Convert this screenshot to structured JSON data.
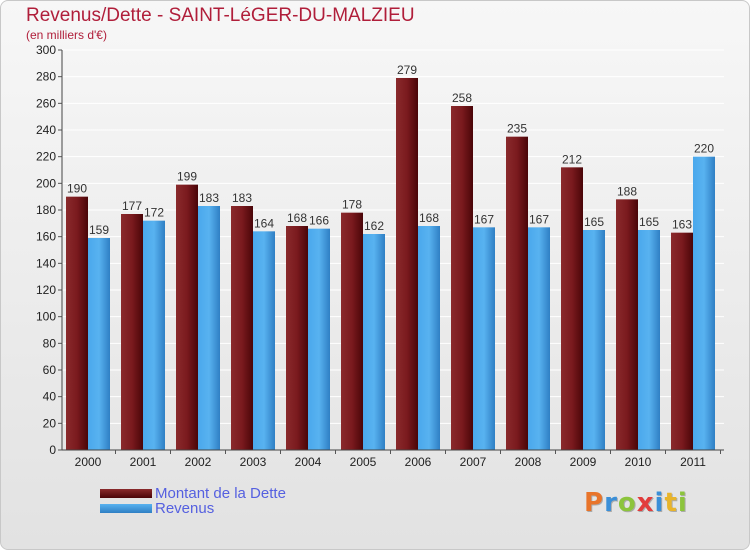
{
  "header": {
    "title": "Revenus/Dette - SAINT-LéGER-DU-MALZIEU",
    "subtitle": "(en milliers d'€)"
  },
  "chart_data": {
    "type": "bar",
    "categories": [
      "2000",
      "2001",
      "2002",
      "2003",
      "2004",
      "2005",
      "2006",
      "2007",
      "2008",
      "2009",
      "2010",
      "2011"
    ],
    "series": [
      {
        "name": "Montant de la Dette",
        "color": "#6b0a0e",
        "values": [
          190,
          177,
          199,
          183,
          168,
          178,
          279,
          258,
          235,
          212,
          188,
          163
        ]
      },
      {
        "name": "Revenus",
        "color": "#3c9ee8",
        "values": [
          159,
          172,
          183,
          164,
          166,
          162,
          168,
          167,
          167,
          165,
          165,
          220
        ]
      }
    ],
    "ylim": [
      0,
      300
    ],
    "yticks": [
      0,
      20,
      40,
      60,
      80,
      100,
      120,
      140,
      160,
      180,
      200,
      220,
      240,
      260,
      280,
      300
    ],
    "grid": true,
    "legend_position": "bottom-left"
  },
  "legend": {
    "items": [
      {
        "label": "Montant de la Dette",
        "color": "#6b0a0e"
      },
      {
        "label": "Revenus",
        "color": "#3c9ee8"
      }
    ]
  },
  "logo": {
    "letters": [
      {
        "char": "P",
        "color": "#e8742a"
      },
      {
        "char": "r",
        "color": "#3a8fd8"
      },
      {
        "char": "o",
        "color": "#8cc43c"
      },
      {
        "char": "x",
        "color": "#e23c3c"
      },
      {
        "char": "i",
        "color": "#3a8fd8"
      },
      {
        "char": "t",
        "color": "#e8b42a"
      },
      {
        "char": "i",
        "color": "#8cc43c"
      }
    ]
  }
}
